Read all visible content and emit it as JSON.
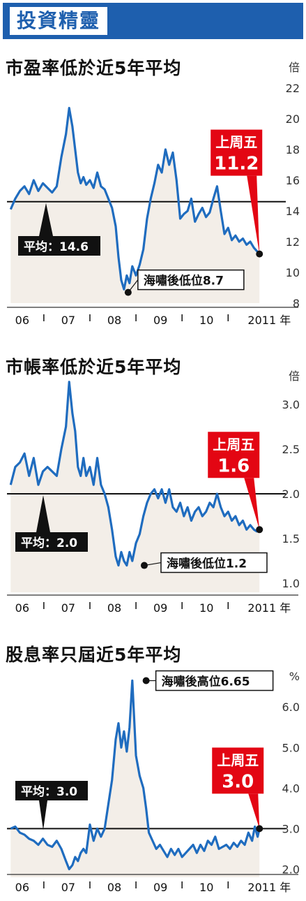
{
  "header": {
    "title": "投資精靈"
  },
  "chart_data": [
    {
      "type": "line",
      "title": "市盈率低於近5年平均",
      "unit_label": "倍",
      "ylim": [
        8,
        22
      ],
      "yticks": [
        "22",
        "20",
        "18",
        "16",
        "14",
        "12",
        "10",
        "8"
      ],
      "ytick_values": [
        22,
        20,
        18,
        16,
        14,
        12,
        10,
        8
      ],
      "x_labels": [
        "06",
        "07",
        "08",
        "09",
        "10",
        "2011 年"
      ],
      "x_label_positions": [
        0,
        1,
        2,
        3,
        4,
        5
      ],
      "xlim": [
        -0.3,
        5.6
      ],
      "average": {
        "value": 14.6,
        "label": "平均：14.6"
      },
      "low": {
        "x": 2.33,
        "y": 8.7,
        "label": "海嘯後低位8.7"
      },
      "last": {
        "x": 5.18,
        "y": 11.2,
        "label_line1": "上周五",
        "label_line2": "11.2"
      },
      "series": [
        {
          "x": [
            -0.22,
            -0.12,
            -0.02,
            0.08,
            0.18,
            0.28,
            0.38,
            0.48,
            0.58,
            0.68,
            0.78,
            0.88,
            0.98,
            1.05,
            1.12,
            1.18,
            1.24,
            1.3,
            1.36,
            1.42,
            1.5,
            1.58,
            1.66,
            1.74,
            1.82,
            1.9,
            1.98,
            2.06,
            2.12,
            2.18,
            2.24,
            2.3,
            2.36,
            2.42,
            2.5,
            2.58,
            2.66,
            2.74,
            2.82,
            2.9,
            2.98,
            3.06,
            3.14,
            3.22,
            3.3,
            3.38,
            3.46,
            3.54,
            3.62,
            3.7,
            3.78,
            3.86,
            3.94,
            4.02,
            4.1,
            4.18,
            4.26,
            4.34,
            4.42,
            4.5,
            4.58,
            4.66,
            4.74,
            4.82,
            4.9,
            4.98,
            5.06,
            5.12,
            5.18
          ],
          "y": [
            14.1,
            14.8,
            15.3,
            15.6,
            15.1,
            16.0,
            15.3,
            15.8,
            15.5,
            15.2,
            15.6,
            17.5,
            19.0,
            20.7,
            19.5,
            18.0,
            16.5,
            15.8,
            16.2,
            15.7,
            16.0,
            15.5,
            16.5,
            15.6,
            15.4,
            14.8,
            14.2,
            13.0,
            11.0,
            9.5,
            8.9,
            9.8,
            9.3,
            10.4,
            9.8,
            10.5,
            11.5,
            13.5,
            14.8,
            15.8,
            17.0,
            16.5,
            18.0,
            17.0,
            17.8,
            16.0,
            13.5,
            13.8,
            14.0,
            14.8,
            13.3,
            13.8,
            14.2,
            13.6,
            13.9,
            14.8,
            15.6,
            14.0,
            12.5,
            12.9,
            12.1,
            12.4,
            12.0,
            12.2,
            11.8,
            12.0,
            11.6,
            11.4,
            11.2
          ]
        }
      ]
    },
    {
      "type": "line",
      "title": "市帳率低於近5年平均",
      "unit_label": "倍",
      "ylim": [
        0.9,
        3.1
      ],
      "yticks": [
        "3.0",
        "2.5",
        "2.0",
        "1.5",
        "1.0"
      ],
      "ytick_values": [
        3.0,
        2.5,
        2.0,
        1.5,
        1.0
      ],
      "x_labels": [
        "06",
        "07",
        "08",
        "09",
        "10",
        "2011 年"
      ],
      "x_label_positions": [
        0,
        1,
        2,
        3,
        4,
        5
      ],
      "xlim": [
        -0.3,
        5.6
      ],
      "average": {
        "value": 2.0,
        "label": "平均：2.0"
      },
      "low": {
        "x": 2.68,
        "y": 1.2,
        "label": "海嘯後低位1.2"
      },
      "last": {
        "x": 5.18,
        "y": 1.6,
        "label_line1": "上周五",
        "label_line2": "1.6"
      },
      "series": [
        {
          "x": [
            -0.22,
            -0.12,
            -0.02,
            0.08,
            0.18,
            0.28,
            0.38,
            0.48,
            0.58,
            0.68,
            0.78,
            0.88,
            0.98,
            1.05,
            1.12,
            1.18,
            1.24,
            1.3,
            1.36,
            1.42,
            1.5,
            1.58,
            1.66,
            1.74,
            1.82,
            1.9,
            1.98,
            2.06,
            2.12,
            2.18,
            2.24,
            2.3,
            2.36,
            2.42,
            2.5,
            2.58,
            2.66,
            2.74,
            2.82,
            2.9,
            2.98,
            3.06,
            3.14,
            3.22,
            3.3,
            3.38,
            3.46,
            3.54,
            3.62,
            3.7,
            3.78,
            3.86,
            3.94,
            4.02,
            4.1,
            4.18,
            4.26,
            4.34,
            4.42,
            4.5,
            4.58,
            4.66,
            4.74,
            4.82,
            4.9,
            4.98,
            5.06,
            5.12,
            5.18
          ],
          "y": [
            2.1,
            2.3,
            2.35,
            2.45,
            2.2,
            2.4,
            2.1,
            2.25,
            2.3,
            2.25,
            2.2,
            2.5,
            2.75,
            3.25,
            2.9,
            2.7,
            2.3,
            2.2,
            2.4,
            2.2,
            2.3,
            2.1,
            2.4,
            2.1,
            2.0,
            1.85,
            1.6,
            1.3,
            1.2,
            1.35,
            1.25,
            1.2,
            1.35,
            1.25,
            1.45,
            1.55,
            1.75,
            1.9,
            2.0,
            2.05,
            1.95,
            2.05,
            1.9,
            2.05,
            1.85,
            1.8,
            1.9,
            1.75,
            1.85,
            1.7,
            1.8,
            1.85,
            1.75,
            1.8,
            1.9,
            1.85,
            2.0,
            1.85,
            1.75,
            1.8,
            1.7,
            1.75,
            1.65,
            1.7,
            1.6,
            1.65,
            1.6,
            1.58,
            1.6
          ]
        }
      ]
    },
    {
      "type": "line",
      "title": "股息率只屆近5年平均",
      "unit_label": "%",
      "ylim": [
        1.8,
        6.9
      ],
      "yticks": [
        "6.0",
        "5.0",
        "4.0",
        "3.0",
        "2.0"
      ],
      "ytick_values": [
        6.0,
        5.0,
        4.0,
        3.0,
        2.0
      ],
      "x_labels": [
        "06",
        "07",
        "08",
        "09",
        "10",
        "2011 年"
      ],
      "x_label_positions": [
        0,
        1,
        2,
        3,
        4,
        5
      ],
      "xlim": [
        -0.3,
        5.6
      ],
      "average": {
        "value": 3.0,
        "label": "平均：3.0"
      },
      "high": {
        "x": 2.72,
        "y": 6.65,
        "label": "海嘯後高位6.65"
      },
      "last": {
        "x": 5.18,
        "y": 3.0,
        "label_line1": "上周五",
        "label_line2": "3.0"
      },
      "series": [
        {
          "x": [
            -0.22,
            -0.12,
            -0.02,
            0.08,
            0.18,
            0.28,
            0.38,
            0.48,
            0.58,
            0.68,
            0.78,
            0.88,
            0.98,
            1.05,
            1.12,
            1.18,
            1.24,
            1.3,
            1.36,
            1.42,
            1.5,
            1.58,
            1.66,
            1.74,
            1.82,
            1.9,
            1.98,
            2.06,
            2.12,
            2.18,
            2.24,
            2.3,
            2.36,
            2.42,
            2.5,
            2.58,
            2.66,
            2.72,
            2.78,
            2.86,
            2.94,
            3.02,
            3.1,
            3.18,
            3.26,
            3.34,
            3.42,
            3.5,
            3.58,
            3.66,
            3.74,
            3.82,
            3.9,
            3.98,
            4.06,
            4.14,
            4.22,
            4.3,
            4.38,
            4.46,
            4.54,
            4.62,
            4.7,
            4.78,
            4.86,
            4.94,
            5.02,
            5.08,
            5.14,
            5.18
          ],
          "y": [
            3.0,
            3.05,
            2.9,
            2.85,
            2.75,
            2.7,
            2.6,
            2.75,
            2.6,
            2.55,
            2.7,
            2.5,
            2.2,
            2.0,
            2.1,
            2.3,
            2.2,
            2.4,
            2.5,
            2.4,
            3.1,
            2.7,
            3.0,
            2.8,
            3.0,
            3.6,
            4.2,
            5.2,
            5.6,
            5.0,
            5.4,
            4.9,
            5.5,
            6.65,
            4.8,
            4.3,
            4.0,
            3.5,
            2.9,
            2.7,
            2.5,
            2.6,
            2.45,
            2.3,
            2.5,
            2.35,
            2.5,
            2.3,
            2.4,
            2.5,
            2.6,
            2.4,
            2.6,
            2.45,
            2.7,
            2.6,
            2.8,
            2.5,
            2.55,
            2.6,
            2.5,
            2.65,
            2.55,
            2.7,
            2.6,
            2.9,
            2.7,
            3.05,
            2.8,
            3.0
          ]
        }
      ]
    }
  ]
}
